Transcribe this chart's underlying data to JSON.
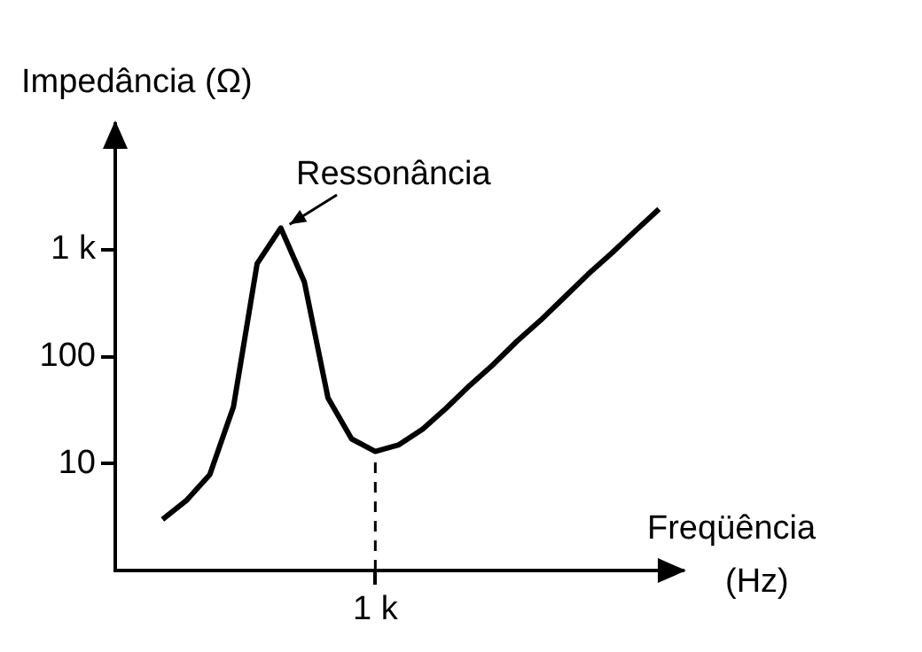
{
  "chart_data": {
    "type": "line",
    "xlabel": "Freqüência (Hz)",
    "ylabel": "Impedância (Ω)",
    "categories": [
      null,
      null,
      null,
      null,
      null,
      null,
      null,
      null,
      null,
      null,
      null,
      "1 k",
      null,
      null,
      null,
      null,
      null,
      null,
      null,
      null,
      null,
      null,
      null,
      null,
      null
    ],
    "series": [
      {
        "color": "#000000",
        "values": [
          null,
          null,
          3.0,
          4.5,
          7.9,
          34,
          740,
          1600,
          500,
          41,
          17,
          13,
          15,
          21,
          33,
          54,
          85,
          140,
          220,
          360,
          590,
          930,
          1500,
          2400,
          null
        ]
      }
    ],
    "log": "y",
    "ylim": [
      1,
      15000
    ],
    "yticks": [
      {
        "value": 10,
        "label": "10"
      },
      {
        "value": 100,
        "label": "100"
      },
      {
        "value": 1000,
        "label": "1 k"
      }
    ],
    "grid": false,
    "legend": false,
    "marker": "none",
    "line_style": "solid",
    "ref_lines": [
      {
        "axis": "x",
        "value": "1 k",
        "line_style": "dashed"
      }
    ],
    "annotations": [
      "Ressonância"
    ]
  }
}
